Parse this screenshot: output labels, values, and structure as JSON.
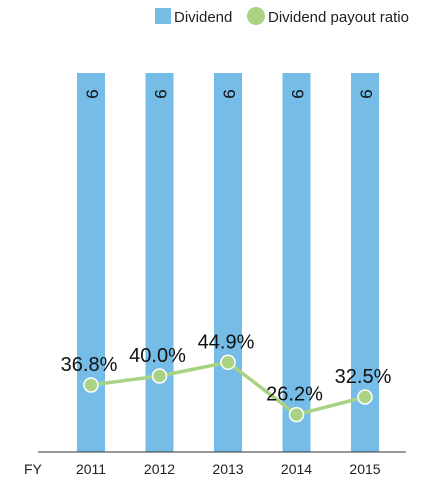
{
  "chart_data": {
    "type": "bar",
    "x_prefix": "FY",
    "categories": [
      "2011",
      "2012",
      "2013",
      "2014",
      "2015"
    ],
    "series": [
      {
        "name": "Dividend",
        "type": "bar",
        "values": [
          9,
          9,
          9,
          9,
          9
        ],
        "labels": [
          "9",
          "9",
          "9",
          "9",
          "9"
        ]
      },
      {
        "name": "Dividend payout ratio",
        "type": "line",
        "values": [
          36.8,
          40.0,
          44.9,
          26.2,
          32.5
        ],
        "labels": [
          "36.8%",
          "40.0%",
          "44.9%",
          "26.2%",
          "32.5%"
        ]
      }
    ],
    "colors": {
      "bar": "#75bde6",
      "line": "#a9d282",
      "marker": "#a9d282",
      "axis": "#333333"
    },
    "legend": {
      "position": "top-right",
      "items": [
        "Dividend",
        "Dividend payout ratio"
      ]
    },
    "grid": false,
    "ratio_range": [
      0,
      100
    ]
  }
}
